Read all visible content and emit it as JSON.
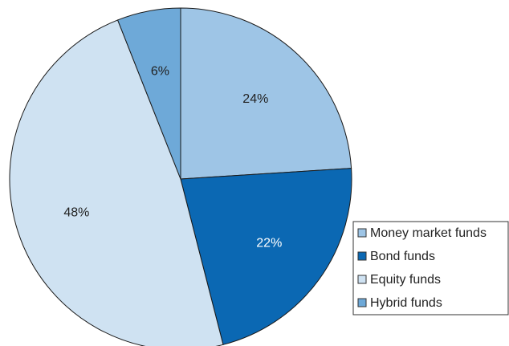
{
  "chart_data": {
    "type": "pie",
    "categories": [
      "Money market funds",
      "Bond funds",
      "Equity funds",
      "Hybrid funds"
    ],
    "values": [
      24,
      22,
      48,
      6
    ],
    "value_labels": [
      "24%",
      "22%",
      "48%",
      "6%"
    ],
    "colors": [
      "#9ec5e6",
      "#0b68b3",
      "#cfe2f2",
      "#6ea9d8"
    ],
    "label_colors": [
      "#222222",
      "#ffffff",
      "#222222",
      "#222222"
    ],
    "legend": "lower right"
  }
}
